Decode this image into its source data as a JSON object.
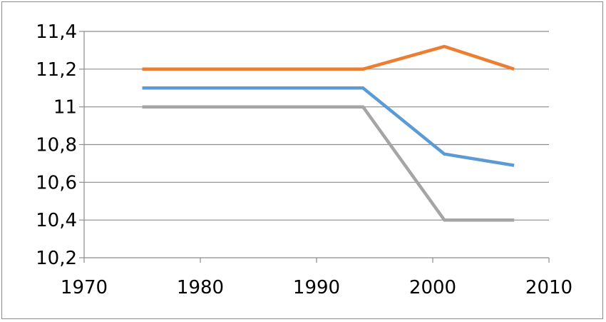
{
  "chart_data": {
    "type": "line",
    "title": "",
    "xlabel": "",
    "ylabel": "",
    "xlim": [
      1970,
      2010
    ],
    "ylim": [
      10.2,
      11.4
    ],
    "x_ticks": [
      1970,
      1980,
      1990,
      2000,
      2010
    ],
    "x_tick_labels": [
      "1970",
      "1980",
      "1990",
      "2000",
      "2010"
    ],
    "y_ticks": [
      10.2,
      10.4,
      10.6,
      10.8,
      11,
      11.2,
      11.4
    ],
    "y_tick_labels": [
      "10,2",
      "10,4",
      "10,6",
      "10,8",
      "11",
      "11,2",
      "11,4"
    ],
    "grid": "horizontal",
    "legend": "none",
    "series": [
      {
        "color": "#ED7D31",
        "x": [
          1975,
          1994,
          2001,
          2007
        ],
        "y": [
          11.2,
          11.2,
          11.32,
          11.2
        ]
      },
      {
        "color": "#5B9BD5",
        "x": [
          1975,
          1994,
          2001,
          2007
        ],
        "y": [
          11.1,
          11.1,
          10.75,
          10.69
        ]
      },
      {
        "color": "#A5A5A5",
        "x": [
          1975,
          1994,
          2001,
          2007
        ],
        "y": [
          11.0,
          11.0,
          10.4,
          10.4
        ]
      }
    ]
  }
}
